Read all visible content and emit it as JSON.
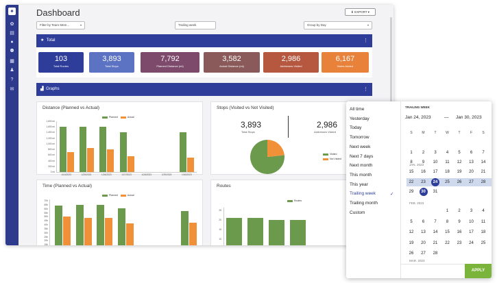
{
  "header": {
    "title": "Dashboard",
    "export_label": "EXPORT"
  },
  "filters": {
    "team_member": "Filter by Team Mem...",
    "period": "Trailing week",
    "group_by": "Group by Day"
  },
  "total_section": {
    "label": "Total"
  },
  "totals": [
    {
      "value": "103",
      "label": "Total Routes",
      "color": "#2e3d99"
    },
    {
      "value": "3,893",
      "label": "Total Stops",
      "color": "#5c72c2"
    },
    {
      "value": "7,792",
      "label": "Planned Distance (mi)",
      "color": "#7d4a6b"
    },
    {
      "value": "3,582",
      "label": "Actual Distance (mi)",
      "color": "#8a5a5a"
    },
    {
      "value": "2,986",
      "label": "Addresses Visited",
      "color": "#b5583f"
    },
    {
      "value": "6,167",
      "label": "Notes Added",
      "color": "#e8813a"
    }
  ],
  "graphs_section": {
    "label": "Graphs"
  },
  "distance_chart": {
    "title": "Distance (Planned vs Actual)",
    "legend": [
      "Planned",
      "Actual"
    ],
    "y_ticks": [
      "1,800 mi",
      "1,600 mi",
      "1,400 mi",
      "1,200 mi",
      "1,000 mi",
      "800 mi",
      "600 mi",
      "400 mi",
      "200 mi",
      "0 mi"
    ],
    "x_ticks": [
      "1/24/2023",
      "1/25/2023",
      "1/26/2023",
      "1/27/2023",
      "1/28/2023",
      "1/29/2023",
      "1/30/2023"
    ]
  },
  "stops_chart": {
    "title": "Stops (Visited vs Not Visited)",
    "total_value": "3,893",
    "total_label": "Total Stops",
    "visited_value": "2,986",
    "visited_label": "Addresses Visited",
    "legend": [
      "Visited",
      "Not Visited"
    ]
  },
  "time_chart": {
    "title": "Time (Planned vs Actual)",
    "legend": [
      "Planned",
      "Actual"
    ],
    "y_ticks": [
      "70h",
      "65h",
      "60h",
      "55h",
      "50h",
      "45h",
      "40h",
      "35h",
      "30h",
      "25h",
      "20h",
      "15h",
      "10h"
    ]
  },
  "routes_chart": {
    "title": "Routes",
    "legend": [
      "Routes"
    ],
    "y_ticks": [
      "25",
      "20",
      "15",
      "10"
    ]
  },
  "chart_data": [
    {
      "type": "bar",
      "title": "Distance (Planned vs Actual)",
      "categories": [
        "1/24/2023",
        "1/25/2023",
        "1/26/2023",
        "1/27/2023",
        "1/28/2023",
        "1/29/2023",
        "1/30/2023"
      ],
      "series": [
        {
          "name": "Planned",
          "values": [
            1600,
            1600,
            1600,
            1400,
            0,
            0,
            1400
          ],
          "color": "#6b9a4c"
        },
        {
          "name": "Actual",
          "values": [
            700,
            850,
            800,
            550,
            0,
            0,
            500
          ],
          "color": "#f0913a"
        }
      ],
      "ylim": [
        0,
        1800
      ]
    },
    {
      "type": "pie",
      "title": "Stops (Visited vs Not Visited)",
      "labels": [
        "Visited",
        "Not Visited"
      ],
      "values": [
        2986,
        907
      ],
      "colors": [
        "#6b9a4c",
        "#f0913a"
      ]
    },
    {
      "type": "bar",
      "title": "Time (Planned vs Actual)",
      "series": [
        {
          "name": "Planned",
          "values": [
            64,
            65,
            65,
            61,
            57
          ],
          "color": "#6b9a4c"
        },
        {
          "name": "Actual",
          "values": [
            50,
            49,
            49,
            42,
            43
          ],
          "color": "#f0913a"
        }
      ],
      "ylim": [
        10,
        70
      ]
    },
    {
      "type": "bar",
      "title": "Routes",
      "series": [
        {
          "name": "Routes",
          "values": [
            21,
            21,
            20,
            20
          ],
          "color": "#6b9a4c"
        }
      ],
      "ylim": [
        10,
        25
      ]
    }
  ],
  "calendar": {
    "header": "TRAILING WEEK",
    "start_date": "Jan 24, 2023",
    "end_date": "Jan 30, 2023",
    "dash": "—",
    "weekdays": [
      "S",
      "M",
      "T",
      "W",
      "T",
      "F",
      "S"
    ],
    "month1": "JAN. 2023",
    "month2": "FEB. 2023",
    "month3": "MAR. 2023",
    "apply_label": "APPLY",
    "presets": [
      "All time",
      "Yesterday",
      "Today",
      "Tomorrow",
      "Next week",
      "Next 7 days",
      "Next month",
      "This month",
      "This year",
      "Trailing week",
      "Trailing month",
      "Custom"
    ],
    "active_preset": "Trailing week"
  }
}
